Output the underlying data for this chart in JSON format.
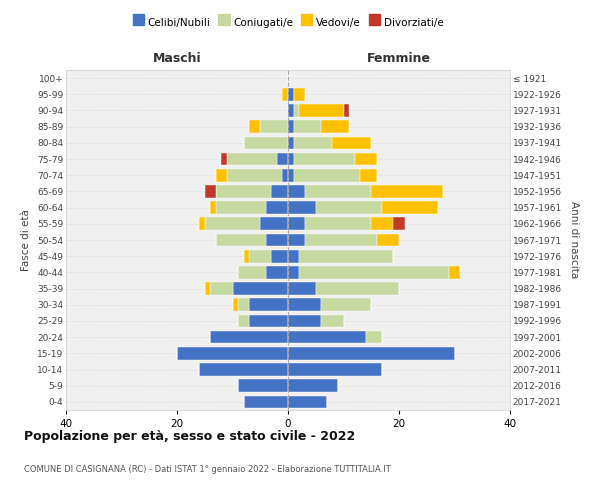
{
  "age_groups": [
    "0-4",
    "5-9",
    "10-14",
    "15-19",
    "20-24",
    "25-29",
    "30-34",
    "35-39",
    "40-44",
    "45-49",
    "50-54",
    "55-59",
    "60-64",
    "65-69",
    "70-74",
    "75-79",
    "80-84",
    "85-89",
    "90-94",
    "95-99",
    "100+"
  ],
  "birth_years": [
    "2017-2021",
    "2012-2016",
    "2007-2011",
    "2002-2006",
    "1997-2001",
    "1992-1996",
    "1987-1991",
    "1982-1986",
    "1977-1981",
    "1972-1976",
    "1967-1971",
    "1962-1966",
    "1957-1961",
    "1952-1956",
    "1947-1951",
    "1942-1946",
    "1937-1941",
    "1932-1936",
    "1927-1931",
    "1922-1926",
    "≤ 1921"
  ],
  "male_celibi": [
    8,
    9,
    16,
    20,
    14,
    7,
    7,
    10,
    4,
    3,
    4,
    5,
    4,
    3,
    1,
    2,
    0,
    0,
    0,
    0,
    0
  ],
  "male_coniugati": [
    0,
    0,
    0,
    0,
    0,
    2,
    2,
    4,
    5,
    4,
    9,
    10,
    9,
    10,
    10,
    9,
    8,
    5,
    0,
    0,
    0
  ],
  "male_vedovi": [
    0,
    0,
    0,
    0,
    0,
    0,
    1,
    1,
    0,
    1,
    0,
    1,
    1,
    0,
    2,
    0,
    0,
    2,
    0,
    1,
    0
  ],
  "male_divorziati": [
    0,
    0,
    0,
    0,
    0,
    0,
    0,
    0,
    0,
    0,
    0,
    0,
    0,
    2,
    0,
    1,
    0,
    0,
    0,
    0,
    0
  ],
  "female_celibi": [
    7,
    9,
    17,
    30,
    14,
    6,
    6,
    5,
    2,
    2,
    3,
    3,
    5,
    3,
    1,
    1,
    1,
    1,
    1,
    1,
    0
  ],
  "female_coniugati": [
    0,
    0,
    0,
    0,
    3,
    4,
    9,
    15,
    27,
    17,
    13,
    12,
    12,
    12,
    12,
    11,
    7,
    5,
    1,
    0,
    0
  ],
  "female_vedovi": [
    0,
    0,
    0,
    0,
    0,
    0,
    0,
    0,
    2,
    0,
    4,
    4,
    10,
    13,
    3,
    4,
    7,
    5,
    8,
    2,
    0
  ],
  "female_divorziati": [
    0,
    0,
    0,
    0,
    0,
    0,
    0,
    0,
    0,
    0,
    0,
    2,
    0,
    0,
    0,
    0,
    0,
    0,
    1,
    0,
    0
  ],
  "colors": {
    "celibi": "#4472c4",
    "coniugati": "#c5d9a0",
    "vedovi": "#ffc000",
    "divorziati": "#c0392b"
  },
  "title": "Popolazione per età, sesso e stato civile - 2022",
  "subtitle": "COMUNE DI CASIGNANA (RC) - Dati ISTAT 1° gennaio 2022 - Elaborazione TUTTITALIA.IT",
  "xlabel_left": "Maschi",
  "xlabel_right": "Femmine",
  "ylabel_left": "Fasce di età",
  "ylabel_right": "Anni di nascita",
  "xlim": 40,
  "bg_color": "#ffffff",
  "plot_bg_color": "#f0f0f0",
  "grid_color": "#dddddd",
  "legend_labels": [
    "Celibi/Nubili",
    "Coniugati/e",
    "Vedovi/e",
    "Divorziati/e"
  ]
}
